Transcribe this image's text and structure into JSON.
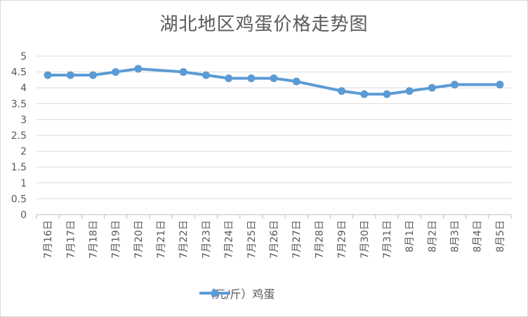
{
  "chart_data": {
    "type": "line",
    "title": "湖北地区鸡蛋价格走势图",
    "categories": [
      "7月16日",
      "7月17日",
      "7月18日",
      "7月19日",
      "7月20日",
      "7月21日",
      "7月22日",
      "7月23日",
      "7月24日",
      "7月25日",
      "7月26日",
      "7月27日",
      "7月28日",
      "7月29日",
      "7月30日",
      "7月31日",
      "8月1日",
      "8月2日",
      "8月3日",
      "8月4日",
      "8月5日"
    ],
    "series": [
      {
        "name": "（元/斤）鸡蛋",
        "color": "#5b9bd5",
        "values": [
          4.4,
          4.4,
          4.4,
          4.5,
          4.6,
          null,
          4.5,
          4.4,
          4.3,
          4.3,
          4.3,
          4.2,
          null,
          3.9,
          3.8,
          3.8,
          3.9,
          4.0,
          4.1,
          null,
          4.1
        ]
      }
    ],
    "yticks": [
      "0",
      "0.5",
      "1",
      "1.5",
      "2",
      "2.5",
      "3",
      "3.5",
      "4",
      "4.5",
      "5"
    ],
    "ylim": [
      0,
      5
    ],
    "grid": true,
    "legend_position": "bottom"
  }
}
